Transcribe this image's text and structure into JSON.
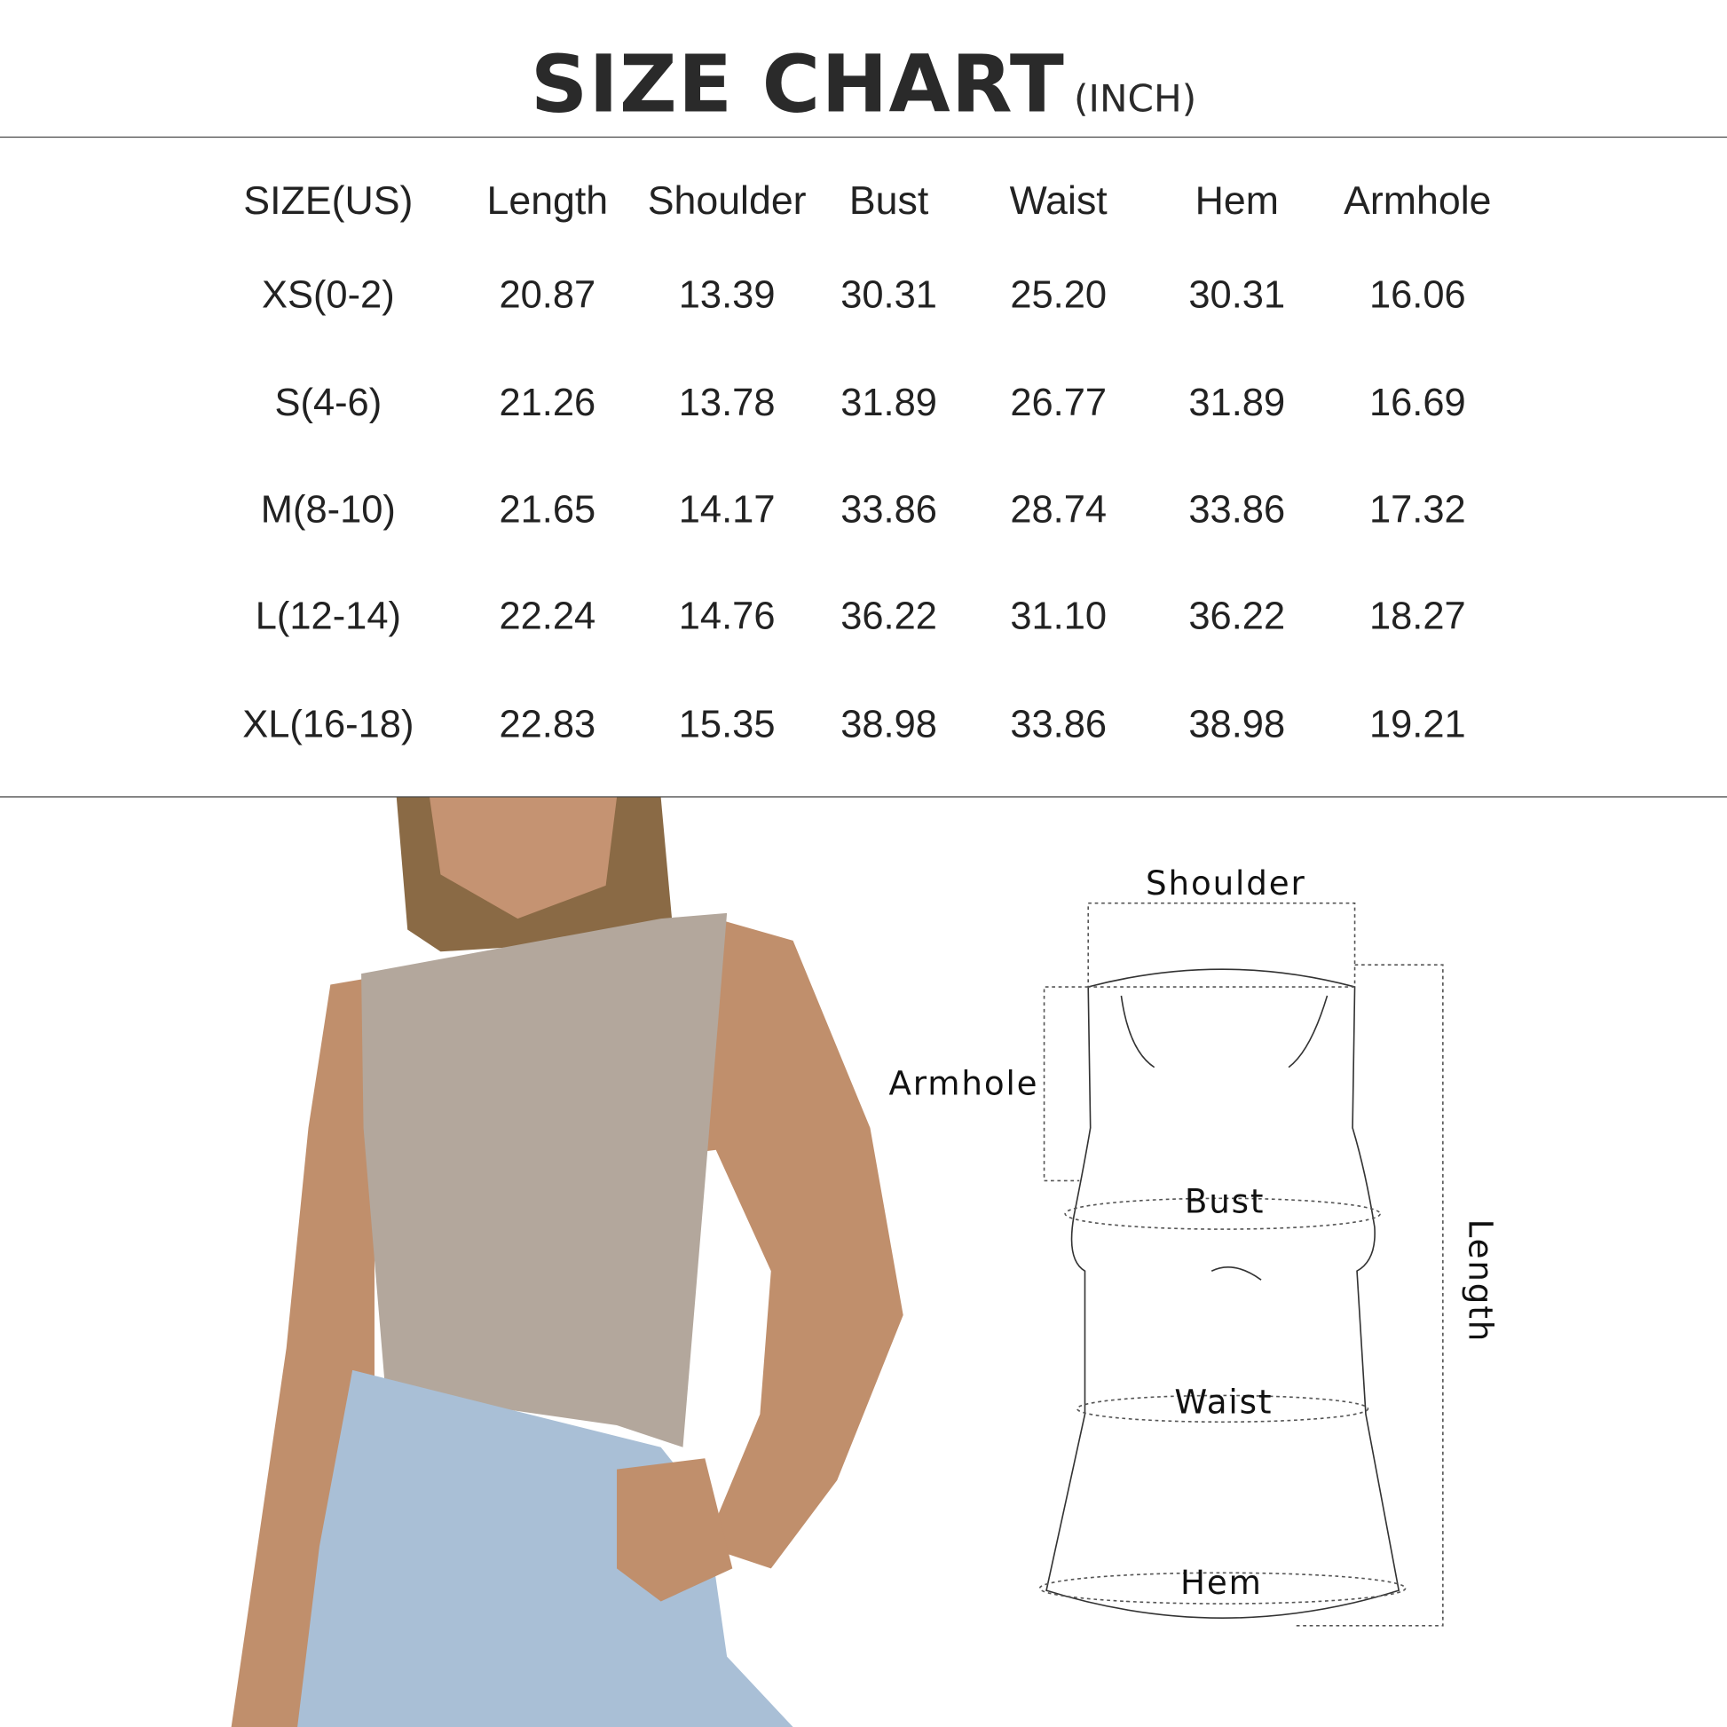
{
  "title": {
    "main": "SIZE CHART",
    "unit": "(INCH)"
  },
  "table": {
    "headers": [
      "SIZE(US)",
      "Length",
      "Shoulder",
      "Bust",
      "Waist",
      "Hem",
      "Armhole"
    ],
    "rows": [
      [
        "XS(0-2)",
        "20.87",
        "13.39",
        "30.31",
        "25.20",
        "30.31",
        "16.06"
      ],
      [
        "S(4-6)",
        "21.26",
        "13.78",
        "31.89",
        "26.77",
        "31.89",
        "16.69"
      ],
      [
        "M(8-10)",
        "21.65",
        "14.17",
        "33.86",
        "28.74",
        "33.86",
        "17.32"
      ],
      [
        "L(12-14)",
        "22.24",
        "14.76",
        "36.22",
        "31.10",
        "36.22",
        "18.27"
      ],
      [
        "XL(16-18)",
        "22.83",
        "15.35",
        "38.98",
        "33.86",
        "38.98",
        "19.21"
      ]
    ]
  },
  "diagram": {
    "labels": {
      "shoulder": "Shoulder",
      "armhole": "Armhole",
      "bust": "Bust",
      "waist": "Waist",
      "hem": "Hem",
      "length": "Length"
    }
  },
  "colors": {
    "top": "#b3a79c",
    "skin": "#c08f6c",
    "jeans": "#a9bfd6",
    "hair": "#8a6a45"
  }
}
